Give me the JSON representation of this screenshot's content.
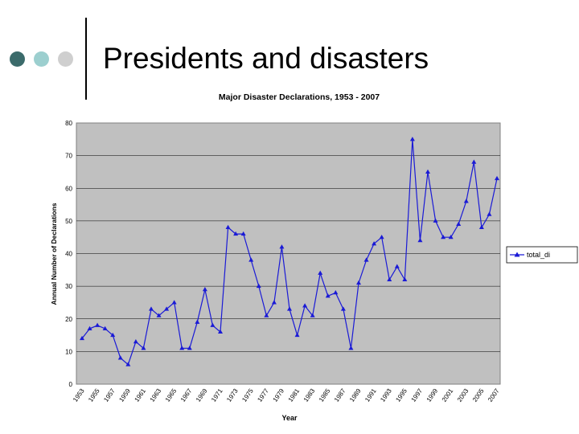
{
  "slide": {
    "title": "Presidents and disasters"
  },
  "colors": {
    "dark_dot": "#3b6b6b",
    "light_dot": "#9ccfcf",
    "gray_dot": "#cfcfcf",
    "series": "#1a1ad6",
    "plot_bg": "#c0c0c0"
  },
  "chart_data": {
    "type": "line",
    "title": "Major Disaster Declarations, 1953 - 2007",
    "xlabel": "Year",
    "ylabel": "Annual Number of Declarations",
    "ylim": [
      0,
      80
    ],
    "yticks": [
      "0",
      "10",
      "20",
      "30",
      "40",
      "50",
      "60",
      "70",
      "80"
    ],
    "xticks": [
      "1953",
      "1955",
      "1957",
      "1959",
      "1961",
      "1963",
      "1965",
      "1967",
      "1969",
      "1971",
      "1973",
      "1975",
      "1977",
      "1979",
      "1981",
      "1983",
      "1985",
      "1987",
      "1989",
      "1991",
      "1993",
      "1995",
      "1997",
      "1999",
      "2001",
      "2003",
      "2005",
      "2007"
    ],
    "grid": true,
    "legend_position": "right",
    "x": [
      1953,
      1954,
      1955,
      1956,
      1957,
      1958,
      1959,
      1960,
      1961,
      1962,
      1963,
      1964,
      1965,
      1966,
      1967,
      1968,
      1969,
      1970,
      1971,
      1972,
      1973,
      1974,
      1975,
      1976,
      1977,
      1978,
      1979,
      1980,
      1981,
      1982,
      1983,
      1984,
      1985,
      1986,
      1987,
      1988,
      1989,
      1990,
      1991,
      1992,
      1993,
      1994,
      1995,
      1996,
      1997,
      1998,
      1999,
      2000,
      2001,
      2002,
      2003,
      2004,
      2005,
      2006,
      2007
    ],
    "series": [
      {
        "name": "total_di",
        "values": [
          14,
          17,
          18,
          17,
          15,
          8,
          6,
          13,
          11,
          23,
          21,
          23,
          25,
          11,
          11,
          19,
          29,
          18,
          16,
          48,
          46,
          46,
          38,
          30,
          21,
          25,
          42,
          23,
          15,
          24,
          21,
          34,
          27,
          28,
          23,
          11,
          31,
          38,
          43,
          45,
          32,
          36,
          32,
          75,
          44,
          65,
          50,
          45,
          45,
          49,
          56,
          68,
          48,
          52,
          63
        ]
      }
    ]
  }
}
